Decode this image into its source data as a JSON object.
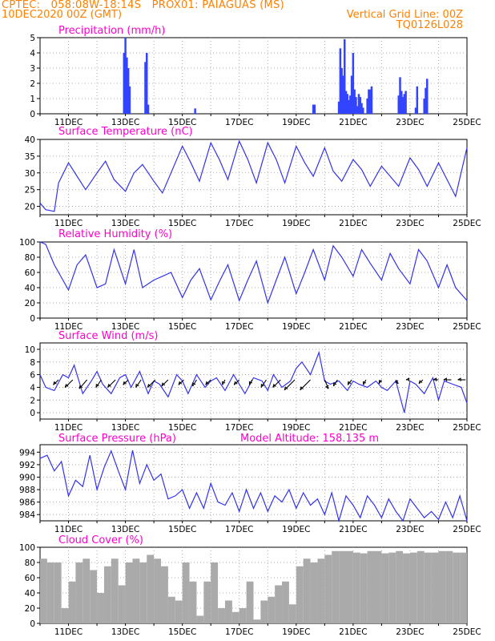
{
  "header": {
    "line1": "CPTEC:   058:08W-18:14S   PROX01: PAIAGUAS (MS)",
    "line2": "10DEC2020 00Z (GMT)",
    "right1": "Vertical Grid Line: 00Z",
    "right2": "TQ0126L028"
  },
  "colors": {
    "header": "#ff8000",
    "title": "#ff00cc",
    "line": "#3333ee",
    "bar": "#3344ff",
    "cloud": "#aaaaaa",
    "wind_arrow": "#000000"
  },
  "x_axis": {
    "type": "date",
    "start": "10DEC2020 00Z",
    "end": "25DEC2020 00Z",
    "tick_labels": [
      "11DEC",
      "13DEC",
      "15DEC",
      "17DEC",
      "19DEC",
      "21DEC",
      "23DEC",
      "25DEC"
    ],
    "grid_lines": "daily at 00Z"
  },
  "chart_data": [
    {
      "id": "precip",
      "type": "bar",
      "title": "Precipitation (mm/h)",
      "ylim": [
        0,
        5
      ],
      "yticks": [
        "0",
        "1",
        "2",
        "3",
        "4",
        "5"
      ],
      "x_unit": "days since 10DEC 00Z",
      "x": [
        2.95,
        3.0,
        3.05,
        3.1,
        3.15,
        3.7,
        3.75,
        3.8,
        5.45,
        9.6,
        9.65,
        10.5,
        10.55,
        10.6,
        10.65,
        10.7,
        10.75,
        10.8,
        10.85,
        10.9,
        10.95,
        11.0,
        11.05,
        11.1,
        11.15,
        11.2,
        11.25,
        11.3,
        11.35,
        11.5,
        11.55,
        11.6,
        11.65,
        12.6,
        12.65,
        12.7,
        12.75,
        12.8,
        12.85,
        13.2,
        13.25,
        13.5,
        13.55,
        13.6
      ],
      "values": [
        4.0,
        5.0,
        3.7,
        3.0,
        1.8,
        3.4,
        4.0,
        0.6,
        0.35,
        0.6,
        0.6,
        0.8,
        4.3,
        3.0,
        2.5,
        4.9,
        1.5,
        1.3,
        0.9,
        1.2,
        2.5,
        4.0,
        1.6,
        1.1,
        0.5,
        1.3,
        1.1,
        0.7,
        0.4,
        1.0,
        1.6,
        1.6,
        1.8,
        1.2,
        2.4,
        1.5,
        1.1,
        1.3,
        1.5,
        0.4,
        1.8,
        1.0,
        1.7,
        2.3
      ]
    },
    {
      "id": "temp",
      "type": "line",
      "title": "Surface Temperature (nC)",
      "ylim": [
        17.5,
        40
      ],
      "yticks": [
        "20",
        "25",
        "30",
        "35",
        "40"
      ],
      "x_unit": "days since 10DEC 00Z",
      "x": [
        0.0,
        0.2,
        0.5,
        0.65,
        1.0,
        1.3,
        1.6,
        2.0,
        2.3,
        2.6,
        3.0,
        3.3,
        3.6,
        4.0,
        4.3,
        4.6,
        5.0,
        5.3,
        5.6,
        6.0,
        6.3,
        6.6,
        7.0,
        7.3,
        7.6,
        8.0,
        8.3,
        8.6,
        9.0,
        9.3,
        9.6,
        10.0,
        10.3,
        10.6,
        11.0,
        11.3,
        11.6,
        12.0,
        12.3,
        12.6,
        13.0,
        13.3,
        13.6,
        14.0,
        14.3,
        14.6,
        15.0
      ],
      "values": [
        21.0,
        19.0,
        18.5,
        27.0,
        33.0,
        29.0,
        25.0,
        30.0,
        33.5,
        28.0,
        24.5,
        30.0,
        32.5,
        27.5,
        24.0,
        30.0,
        38.0,
        33.0,
        27.5,
        39.0,
        34.0,
        28.0,
        39.5,
        34.0,
        27.0,
        39.0,
        34.0,
        27.0,
        38.0,
        33.0,
        29.0,
        37.5,
        30.5,
        27.5,
        34.0,
        31.0,
        26.0,
        32.0,
        29.0,
        26.0,
        34.5,
        31.0,
        26.0,
        33.0,
        28.0,
        23.0,
        37.5
      ]
    },
    {
      "id": "rh",
      "type": "line",
      "title": "Relative Humidity (%)",
      "ylim": [
        0,
        100
      ],
      "yticks": [
        "0",
        "20",
        "40",
        "60",
        "80",
        "100"
      ],
      "x_unit": "days since 10DEC 00Z",
      "x": [
        0.0,
        0.2,
        0.5,
        1.0,
        1.3,
        1.6,
        2.0,
        2.3,
        2.6,
        3.0,
        3.3,
        3.6,
        4.0,
        4.3,
        4.6,
        5.0,
        5.3,
        5.6,
        6.0,
        6.3,
        6.6,
        7.0,
        7.3,
        7.6,
        8.0,
        8.3,
        8.6,
        9.0,
        9.3,
        9.6,
        10.0,
        10.3,
        10.6,
        11.0,
        11.3,
        11.6,
        12.0,
        12.3,
        12.6,
        13.0,
        13.3,
        13.6,
        14.0,
        14.3,
        14.6,
        15.0
      ],
      "values": [
        100.0,
        97.0,
        70.0,
        37.0,
        70.0,
        83.0,
        40.0,
        45.0,
        90.0,
        45.0,
        90.0,
        40.0,
        50.0,
        55.0,
        60.0,
        27.0,
        50.0,
        65.0,
        24.0,
        48.0,
        70.0,
        23.0,
        50.0,
        75.0,
        20.0,
        50.0,
        80.0,
        32.0,
        60.0,
        90.0,
        50.0,
        95.0,
        80.0,
        55.0,
        90.0,
        72.0,
        50.0,
        85.0,
        65.0,
        45.0,
        90.0,
        75.0,
        40.0,
        70.0,
        40.0,
        23.0
      ]
    },
    {
      "id": "wind",
      "type": "line",
      "title": "Surface Wind (m/s)",
      "ylim": [
        -1,
        11
      ],
      "yticks": [
        "0",
        "2",
        "4",
        "6",
        "8",
        "10"
      ],
      "x_unit": "days since 10DEC 00Z",
      "x": [
        0.0,
        0.2,
        0.5,
        0.8,
        1.0,
        1.2,
        1.5,
        1.8,
        2.0,
        2.2,
        2.5,
        2.8,
        3.0,
        3.2,
        3.5,
        3.8,
        4.0,
        4.2,
        4.5,
        4.8,
        5.0,
        5.2,
        5.5,
        5.8,
        6.0,
        6.2,
        6.5,
        6.8,
        7.0,
        7.2,
        7.5,
        7.8,
        8.0,
        8.2,
        8.5,
        8.8,
        9.0,
        9.2,
        9.5,
        9.8,
        10.0,
        10.2,
        10.5,
        10.8,
        11.0,
        11.2,
        11.5,
        11.8,
        12.0,
        12.2,
        12.5,
        12.8,
        13.0,
        13.2,
        13.5,
        13.8,
        14.0,
        14.2,
        14.5,
        14.8,
        15.0
      ],
      "values": [
        6.0,
        4.0,
        3.5,
        6.0,
        5.5,
        7.5,
        3.0,
        5.0,
        6.5,
        4.5,
        3.0,
        5.5,
        6.0,
        4.0,
        6.5,
        3.0,
        5.0,
        4.5,
        2.5,
        6.0,
        5.0,
        3.0,
        6.0,
        4.0,
        5.0,
        5.5,
        3.5,
        6.0,
        4.5,
        3.0,
        5.5,
        5.0,
        3.5,
        6.0,
        4.0,
        5.0,
        7.0,
        8.0,
        6.0,
        9.5,
        5.0,
        4.5,
        5.0,
        3.5,
        5.0,
        4.5,
        4.0,
        5.0,
        4.0,
        3.5,
        5.0,
        0.0,
        5.0,
        4.5,
        3.0,
        5.5,
        2.0,
        5.0,
        4.5,
        4.0,
        1.5
      ],
      "arrows": {
        "x": [
          0.65,
          1.15,
          1.65,
          2.15,
          2.65,
          3.1,
          3.55,
          4.05,
          4.5,
          5.05,
          5.5,
          6.0,
          6.5,
          7.0,
          7.45,
          7.95,
          8.45,
          8.95,
          9.5,
          10.0,
          10.45,
          10.95,
          11.45,
          12.0,
          12.5,
          12.95,
          13.45,
          14.0,
          14.45,
          14.95
        ],
        "u": [
          -2.0,
          -3.0,
          -3.0,
          -2.0,
          -3.0,
          -2.0,
          -2.0,
          -3.0,
          -2.5,
          -2.0,
          -1.5,
          -2.0,
          -1.0,
          -2.0,
          -1.0,
          -2.0,
          -3.0,
          -4.0,
          -4.0,
          1.5,
          -1.5,
          -1.5,
          -1.0,
          -1.0,
          1.0,
          -1.0,
          -1.5,
          -2.0,
          -3.0,
          -3.0
        ],
        "v": [
          -2.0,
          -3.0,
          -3.5,
          -3.0,
          -3.0,
          -2.0,
          -3.0,
          -3.0,
          -2.5,
          -2.0,
          -2.5,
          -2.0,
          -2.0,
          -2.0,
          -2.0,
          -3.0,
          -3.0,
          -4.0,
          -4.0,
          -3.5,
          -2.5,
          -2.0,
          -2.0,
          -1.5,
          -1.5,
          0.0,
          -1.5,
          0.0,
          0.0,
          0.0
        ]
      }
    },
    {
      "id": "pres",
      "type": "line",
      "title": "Surface Pressure (hPa)",
      "annotation": "Model Altitude: 158.135 m",
      "ylim": [
        983,
        995.2
      ],
      "yticks": [
        "984",
        "986",
        "988",
        "990",
        "992",
        "994"
      ],
      "x_unit": "days since 10DEC 00Z",
      "x": [
        0.0,
        0.25,
        0.5,
        0.75,
        1.0,
        1.25,
        1.5,
        1.75,
        2.0,
        2.25,
        2.5,
        2.75,
        3.0,
        3.25,
        3.5,
        3.75,
        4.0,
        4.25,
        4.5,
        4.75,
        5.0,
        5.25,
        5.5,
        5.75,
        6.0,
        6.25,
        6.5,
        6.75,
        7.0,
        7.25,
        7.5,
        7.75,
        8.0,
        8.25,
        8.5,
        8.75,
        9.0,
        9.25,
        9.5,
        9.75,
        10.0,
        10.25,
        10.5,
        10.75,
        11.0,
        11.25,
        11.5,
        11.75,
        12.0,
        12.25,
        12.5,
        12.75,
        13.0,
        13.25,
        13.5,
        13.75,
        14.0,
        14.25,
        14.5,
        14.75,
        15.0
      ],
      "values": [
        993.0,
        993.5,
        991.0,
        992.5,
        987.0,
        989.5,
        988.5,
        993.5,
        988.0,
        991.5,
        994.2,
        991.0,
        988.0,
        994.3,
        989.0,
        992.0,
        989.5,
        990.5,
        986.5,
        987.0,
        988.0,
        985.0,
        987.5,
        985.0,
        989.0,
        986.0,
        985.5,
        987.5,
        984.5,
        988.0,
        985.0,
        987.5,
        984.5,
        987.0,
        986.0,
        988.0,
        985.0,
        987.5,
        985.5,
        986.5,
        984.0,
        987.5,
        983.0,
        987.0,
        985.5,
        983.5,
        987.0,
        985.5,
        983.5,
        986.5,
        984.5,
        983.0,
        986.5,
        985.0,
        983.5,
        984.5,
        983.2,
        986.0,
        983.5,
        987.0,
        983.0
      ]
    },
    {
      "id": "cloud",
      "type": "area",
      "title": "Cloud Cover (%)",
      "ylim": [
        0,
        100
      ],
      "yticks": [
        "0",
        "20",
        "40",
        "60",
        "80",
        "100"
      ],
      "x_unit": "days since 10DEC 00Z",
      "x": [
        0.0,
        0.25,
        0.5,
        0.75,
        1.0,
        1.25,
        1.5,
        1.75,
        2.0,
        2.25,
        2.5,
        2.75,
        3.0,
        3.25,
        3.5,
        3.75,
        4.0,
        4.25,
        4.5,
        4.75,
        5.0,
        5.25,
        5.5,
        5.75,
        6.0,
        6.25,
        6.5,
        6.75,
        7.0,
        7.25,
        7.5,
        7.75,
        8.0,
        8.25,
        8.5,
        8.75,
        9.0,
        9.25,
        9.5,
        9.75,
        10.0,
        10.25,
        10.5,
        10.75,
        11.0,
        11.25,
        11.5,
        11.75,
        12.0,
        12.25,
        12.5,
        12.75,
        13.0,
        13.25,
        13.5,
        13.75,
        14.0,
        14.25,
        14.5,
        14.75,
        15.0
      ],
      "values": [
        85.0,
        80.0,
        80.0,
        20.0,
        55.0,
        80.0,
        85.0,
        70.0,
        40.0,
        75.0,
        85.0,
        50.0,
        80.0,
        85.0,
        80.0,
        90.0,
        85.0,
        75.0,
        35.0,
        30.0,
        80.0,
        55.0,
        10.0,
        55.0,
        80.0,
        20.0,
        30.0,
        15.0,
        20.0,
        55.0,
        5.0,
        30.0,
        35.0,
        50.0,
        55.0,
        25.0,
        75.0,
        85.0,
        80.0,
        85.0,
        90.0,
        95.0,
        95.0,
        95.0,
        93.0,
        92.0,
        95.0,
        95.0,
        92.0,
        93.0,
        95.0,
        92.0,
        93.0,
        95.0,
        93.0,
        93.0,
        95.0,
        95.0,
        93.0,
        93.0,
        95.0
      ]
    }
  ],
  "panels": [
    {
      "id": "precip",
      "title": "Precipitation (mm/h)"
    },
    {
      "id": "temp",
      "title": "Surface Temperature (nC)"
    },
    {
      "id": "rh",
      "title": "Relative Humidity (%)"
    },
    {
      "id": "wind",
      "title": "Surface Wind (m/s)"
    },
    {
      "id": "pres",
      "title": "Surface Pressure (hPa)",
      "annotation": "Model Altitude: 158.135 m"
    },
    {
      "id": "cloud",
      "title": "Cloud Cover (%)"
    }
  ]
}
